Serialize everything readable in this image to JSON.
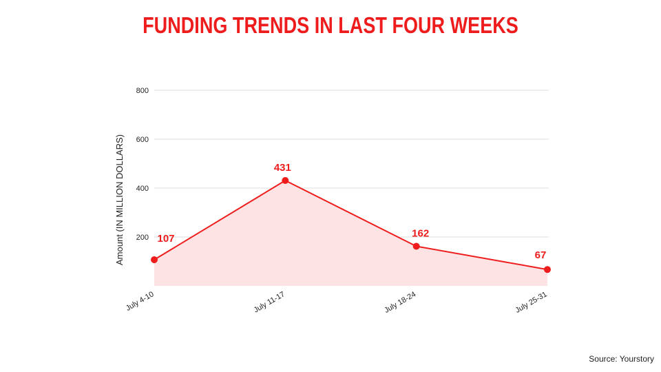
{
  "title": "FUNDING TRENDS IN LAST FOUR WEEKS",
  "source": "Source: Yourstory",
  "colors": {
    "title": "#ee1c1c",
    "line": "#ee1c1c",
    "area": "#fde3e3",
    "grid": "#dddddd",
    "text": "#222222"
  },
  "chart_data": {
    "type": "area",
    "categories": [
      "July 4-10",
      "July 11-17",
      "July 18-24",
      "July 25-31"
    ],
    "series": [
      {
        "values": [
          107,
          431,
          162,
          67
        ]
      }
    ],
    "data_labels": [
      "107",
      "431",
      "162",
      "67"
    ],
    "xlabel": "",
    "ylabel": "Amount (IN MILLION DOLLARS)",
    "ylim": [
      0,
      800
    ],
    "yticks": [
      200,
      400,
      600,
      800
    ],
    "grid": true,
    "legend": "none"
  }
}
